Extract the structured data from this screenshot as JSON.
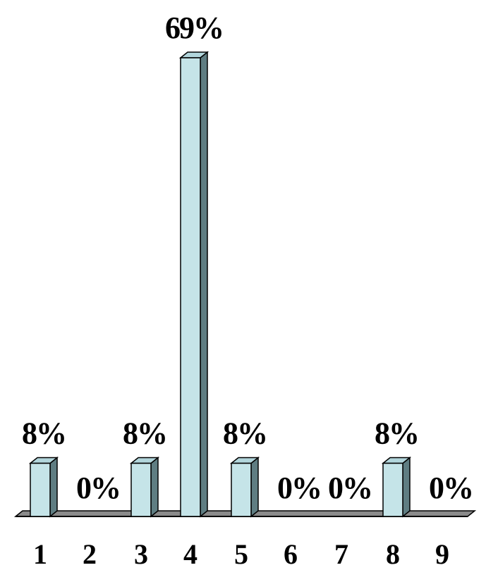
{
  "chart_data": {
    "type": "bar",
    "categories": [
      "1",
      "2",
      "3",
      "4",
      "5",
      "6",
      "7",
      "8",
      "9"
    ],
    "values": [
      8,
      0,
      8,
      69,
      8,
      0,
      0,
      8,
      0
    ],
    "data_labels": [
      "8%",
      "0%",
      "8%",
      "69%",
      "8%",
      "0%",
      "0%",
      "8%",
      "0%"
    ],
    "title": "",
    "xlabel": "",
    "ylabel": "",
    "ylim": [
      0,
      69
    ],
    "grid": false,
    "legend": "none",
    "style": "3d-column"
  },
  "colors": {
    "bar_front": "#c5e4e8",
    "bar_top": "#b2d6dc",
    "bar_side": "#5f7d82",
    "floor": "#8a8a8a",
    "outline": "#000000"
  }
}
